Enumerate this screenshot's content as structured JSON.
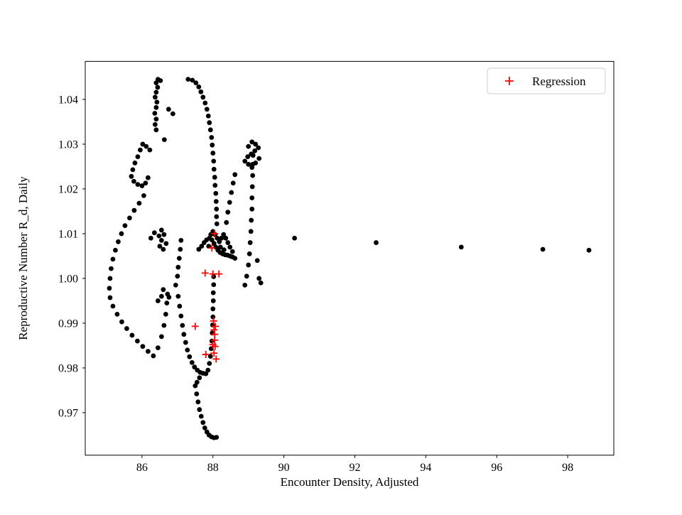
{
  "figure": {
    "background": "#ffffff"
  },
  "chart_data": {
    "type": "scatter",
    "title": "",
    "xlabel": "Encounter Density, Adjusted",
    "ylabel": "Reproductive Number R_d, Daily",
    "xlim": [
      84.4,
      99.3
    ],
    "ylim": [
      0.9605,
      1.0485
    ],
    "x_ticks": [
      86,
      88,
      90,
      92,
      94,
      96,
      98
    ],
    "y_ticks": [
      0.97,
      0.98,
      0.99,
      1.0,
      1.01,
      1.02,
      1.03,
      1.04
    ],
    "grid": false,
    "legend": {
      "position": "upper right",
      "entries": [
        {
          "label": "Regression",
          "marker": "plus",
          "color": "#ff0000"
        }
      ]
    },
    "series": [
      {
        "name": "observations",
        "marker": "circle",
        "color": "#000000",
        "points": [
          [
            86.45,
            1.0445
          ],
          [
            86.52,
            1.0442
          ],
          [
            86.4,
            1.0437
          ],
          [
            86.44,
            1.0427
          ],
          [
            86.4,
            1.0416
          ],
          [
            86.37,
            1.0405
          ],
          [
            86.42,
            1.0394
          ],
          [
            86.4,
            1.0382
          ],
          [
            86.36,
            1.0369
          ],
          [
            86.4,
            1.0356
          ],
          [
            86.37,
            1.0344
          ],
          [
            86.4,
            1.0332
          ],
          [
            86.75,
            1.0378
          ],
          [
            86.87,
            1.0368
          ],
          [
            86.63,
            1.031
          ],
          [
            87.3,
            1.0445
          ],
          [
            87.42,
            1.0443
          ],
          [
            87.52,
            1.0437
          ],
          [
            87.6,
            1.0428
          ],
          [
            87.66,
            1.0417
          ],
          [
            87.72,
            1.0405
          ],
          [
            87.78,
            1.0392
          ],
          [
            87.83,
            1.0378
          ],
          [
            87.87,
            1.0363
          ],
          [
            87.9,
            1.0348
          ],
          [
            87.93,
            1.0332
          ],
          [
            87.96,
            1.0315
          ],
          [
            87.98,
            1.0298
          ],
          [
            88.0,
            1.028
          ],
          [
            88.02,
            1.0262
          ],
          [
            88.03,
            1.0244
          ],
          [
            88.05,
            1.0226
          ],
          [
            88.06,
            1.0208
          ],
          [
            88.08,
            1.019
          ],
          [
            88.09,
            1.0172
          ],
          [
            88.1,
            1.0155
          ],
          [
            88.1,
            1.0138
          ],
          [
            88.11,
            1.0122
          ],
          [
            86.22,
            1.0287
          ],
          [
            86.12,
            1.0295
          ],
          [
            86.02,
            1.03
          ],
          [
            85.95,
            1.0287
          ],
          [
            85.88,
            1.0272
          ],
          [
            85.8,
            1.0258
          ],
          [
            85.74,
            1.0243
          ],
          [
            85.7,
            1.0228
          ],
          [
            85.77,
            1.0217
          ],
          [
            85.88,
            1.021
          ],
          [
            86.0,
            1.0207
          ],
          [
            86.1,
            1.0213
          ],
          [
            86.17,
            1.0225
          ],
          [
            86.05,
            1.0185
          ],
          [
            85.92,
            1.0168
          ],
          [
            85.78,
            1.0152
          ],
          [
            85.65,
            1.0135
          ],
          [
            85.52,
            1.0118
          ],
          [
            85.42,
            1.01
          ],
          [
            85.33,
            1.0082
          ],
          [
            85.25,
            1.0063
          ],
          [
            85.18,
            1.0043
          ],
          [
            85.13,
            1.0022
          ],
          [
            85.1,
            1.0
          ],
          [
            85.08,
            0.9978
          ],
          [
            85.1,
            0.9957
          ],
          [
            85.18,
            0.9938
          ],
          [
            85.3,
            0.992
          ],
          [
            85.43,
            0.9903
          ],
          [
            85.57,
            0.9888
          ],
          [
            85.72,
            0.9873
          ],
          [
            85.87,
            0.986
          ],
          [
            86.02,
            0.9848
          ],
          [
            86.17,
            0.9837
          ],
          [
            86.32,
            0.9827
          ],
          [
            86.45,
            0.9845
          ],
          [
            86.55,
            0.987
          ],
          [
            86.62,
            0.9895
          ],
          [
            86.67,
            0.992
          ],
          [
            86.7,
            0.9945
          ],
          [
            86.72,
            0.9965
          ],
          [
            86.55,
            0.996
          ],
          [
            86.45,
            0.995
          ],
          [
            86.6,
            0.9975
          ],
          [
            86.76,
            0.9958
          ],
          [
            86.95,
            0.9985
          ],
          [
            87.0,
            1.0005
          ],
          [
            87.02,
            1.0025
          ],
          [
            87.05,
            1.0045
          ],
          [
            87.08,
            1.0065
          ],
          [
            87.1,
            1.0085
          ],
          [
            86.48,
            1.0095
          ],
          [
            86.55,
            1.0108
          ],
          [
            86.62,
            1.0098
          ],
          [
            86.55,
            1.0085
          ],
          [
            86.5,
            1.0072
          ],
          [
            86.6,
            1.0065
          ],
          [
            86.68,
            1.0078
          ],
          [
            86.35,
            1.0102
          ],
          [
            86.25,
            1.009
          ],
          [
            87.6,
            1.0065
          ],
          [
            87.68,
            1.0072
          ],
          [
            87.75,
            1.008
          ],
          [
            87.82,
            1.0086
          ],
          [
            87.9,
            1.009
          ],
          [
            87.97,
            1.0086
          ],
          [
            88.03,
            1.0078
          ],
          [
            88.08,
            1.007
          ],
          [
            88.14,
            1.0063
          ],
          [
            88.2,
            1.0058
          ],
          [
            88.27,
            1.0055
          ],
          [
            88.34,
            1.0053
          ],
          [
            88.41,
            1.0052
          ],
          [
            88.48,
            1.005
          ],
          [
            88.55,
            1.0048
          ],
          [
            88.62,
            1.0045
          ],
          [
            88.55,
            1.006
          ],
          [
            88.48,
            1.007
          ],
          [
            88.42,
            1.008
          ],
          [
            88.36,
            1.009
          ],
          [
            88.3,
            1.0098
          ],
          [
            88.24,
            1.009
          ],
          [
            88.18,
            1.0082
          ],
          [
            88.12,
            1.009
          ],
          [
            88.06,
            1.0098
          ],
          [
            88.0,
            1.0105
          ],
          [
            87.94,
            1.0098
          ],
          [
            87.88,
            1.0072
          ],
          [
            88.21,
            1.007
          ],
          [
            88.31,
            1.0064
          ],
          [
            88.9,
            0.9985
          ],
          [
            88.95,
            1.0005
          ],
          [
            89.0,
            1.003
          ],
          [
            89.03,
            1.0055
          ],
          [
            89.05,
            1.008
          ],
          [
            89.07,
            1.0105
          ],
          [
            89.08,
            1.013
          ],
          [
            89.1,
            1.0155
          ],
          [
            89.1,
            1.018
          ],
          [
            89.11,
            1.0205
          ],
          [
            89.12,
            1.023
          ],
          [
            89.12,
            1.0255
          ],
          [
            89.13,
            1.0275
          ],
          [
            89.0,
            1.0295
          ],
          [
            89.1,
            1.0305
          ],
          [
            89.2,
            1.03
          ],
          [
            89.28,
            1.0292
          ],
          [
            89.18,
            1.0285
          ],
          [
            89.08,
            1.0278
          ],
          [
            88.98,
            1.0272
          ],
          [
            88.9,
            1.0262
          ],
          [
            89.0,
            1.0255
          ],
          [
            89.1,
            1.0248
          ],
          [
            89.2,
            1.0258
          ],
          [
            89.3,
            1.0268
          ],
          [
            88.38,
            1.0125
          ],
          [
            88.42,
            1.0148
          ],
          [
            88.47,
            1.017
          ],
          [
            88.52,
            1.0192
          ],
          [
            88.57,
            1.0213
          ],
          [
            88.62,
            1.0232
          ],
          [
            87.02,
            0.996
          ],
          [
            87.06,
            0.9938
          ],
          [
            87.1,
            0.9916
          ],
          [
            87.14,
            0.9895
          ],
          [
            87.18,
            0.9875
          ],
          [
            87.23,
            0.9857
          ],
          [
            87.28,
            0.984
          ],
          [
            87.34,
            0.9825
          ],
          [
            87.41,
            0.9812
          ],
          [
            87.48,
            0.9802
          ],
          [
            87.56,
            0.9795
          ],
          [
            87.64,
            0.979
          ],
          [
            87.72,
            0.9788
          ],
          [
            87.8,
            0.9787
          ],
          [
            87.86,
            0.9795
          ],
          [
            87.9,
            0.981
          ],
          [
            87.93,
            0.9826
          ],
          [
            87.95,
            0.9843
          ],
          [
            87.97,
            0.986
          ],
          [
            87.98,
            0.9878
          ],
          [
            87.99,
            0.9896
          ],
          [
            88.0,
            0.9914
          ],
          [
            88.0,
            0.9932
          ],
          [
            88.01,
            0.995
          ],
          [
            88.01,
            0.9968
          ],
          [
            88.02,
            0.9986
          ],
          [
            88.02,
            1.0004
          ],
          [
            87.62,
            0.9778
          ],
          [
            87.55,
            0.9768
          ],
          [
            87.5,
            0.976
          ],
          [
            87.54,
            0.9742
          ],
          [
            87.58,
            0.9724
          ],
          [
            87.62,
            0.9707
          ],
          [
            87.67,
            0.9692
          ],
          [
            87.72,
            0.9678
          ],
          [
            87.77,
            0.9666
          ],
          [
            87.83,
            0.9657
          ],
          [
            87.89,
            0.965
          ],
          [
            87.96,
            0.9646
          ],
          [
            88.03,
            0.9644
          ],
          [
            88.1,
            0.9645
          ],
          [
            89.35,
            0.999
          ],
          [
            89.25,
            1.004
          ],
          [
            89.3,
            1.0
          ],
          [
            90.3,
            1.009
          ],
          [
            92.6,
            1.008
          ],
          [
            95.0,
            1.007
          ],
          [
            97.3,
            1.0065
          ],
          [
            98.6,
            1.0063
          ]
        ]
      },
      {
        "name": "Regression",
        "marker": "plus",
        "color": "#ff0000",
        "points": [
          [
            88.05,
            1.01
          ],
          [
            87.97,
            1.0068
          ],
          [
            87.78,
            1.0012
          ],
          [
            88.0,
            1.001
          ],
          [
            88.17,
            1.001
          ],
          [
            87.5,
            0.9893
          ],
          [
            88.02,
            0.9905
          ],
          [
            88.07,
            0.9893
          ],
          [
            88.03,
            0.9885
          ],
          [
            88.05,
            0.9875
          ],
          [
            88.05,
            0.9862
          ],
          [
            88.0,
            0.9852
          ],
          [
            88.06,
            0.9848
          ],
          [
            87.8,
            0.983
          ],
          [
            88.03,
            0.9833
          ],
          [
            88.09,
            0.982
          ]
        ]
      }
    ]
  }
}
